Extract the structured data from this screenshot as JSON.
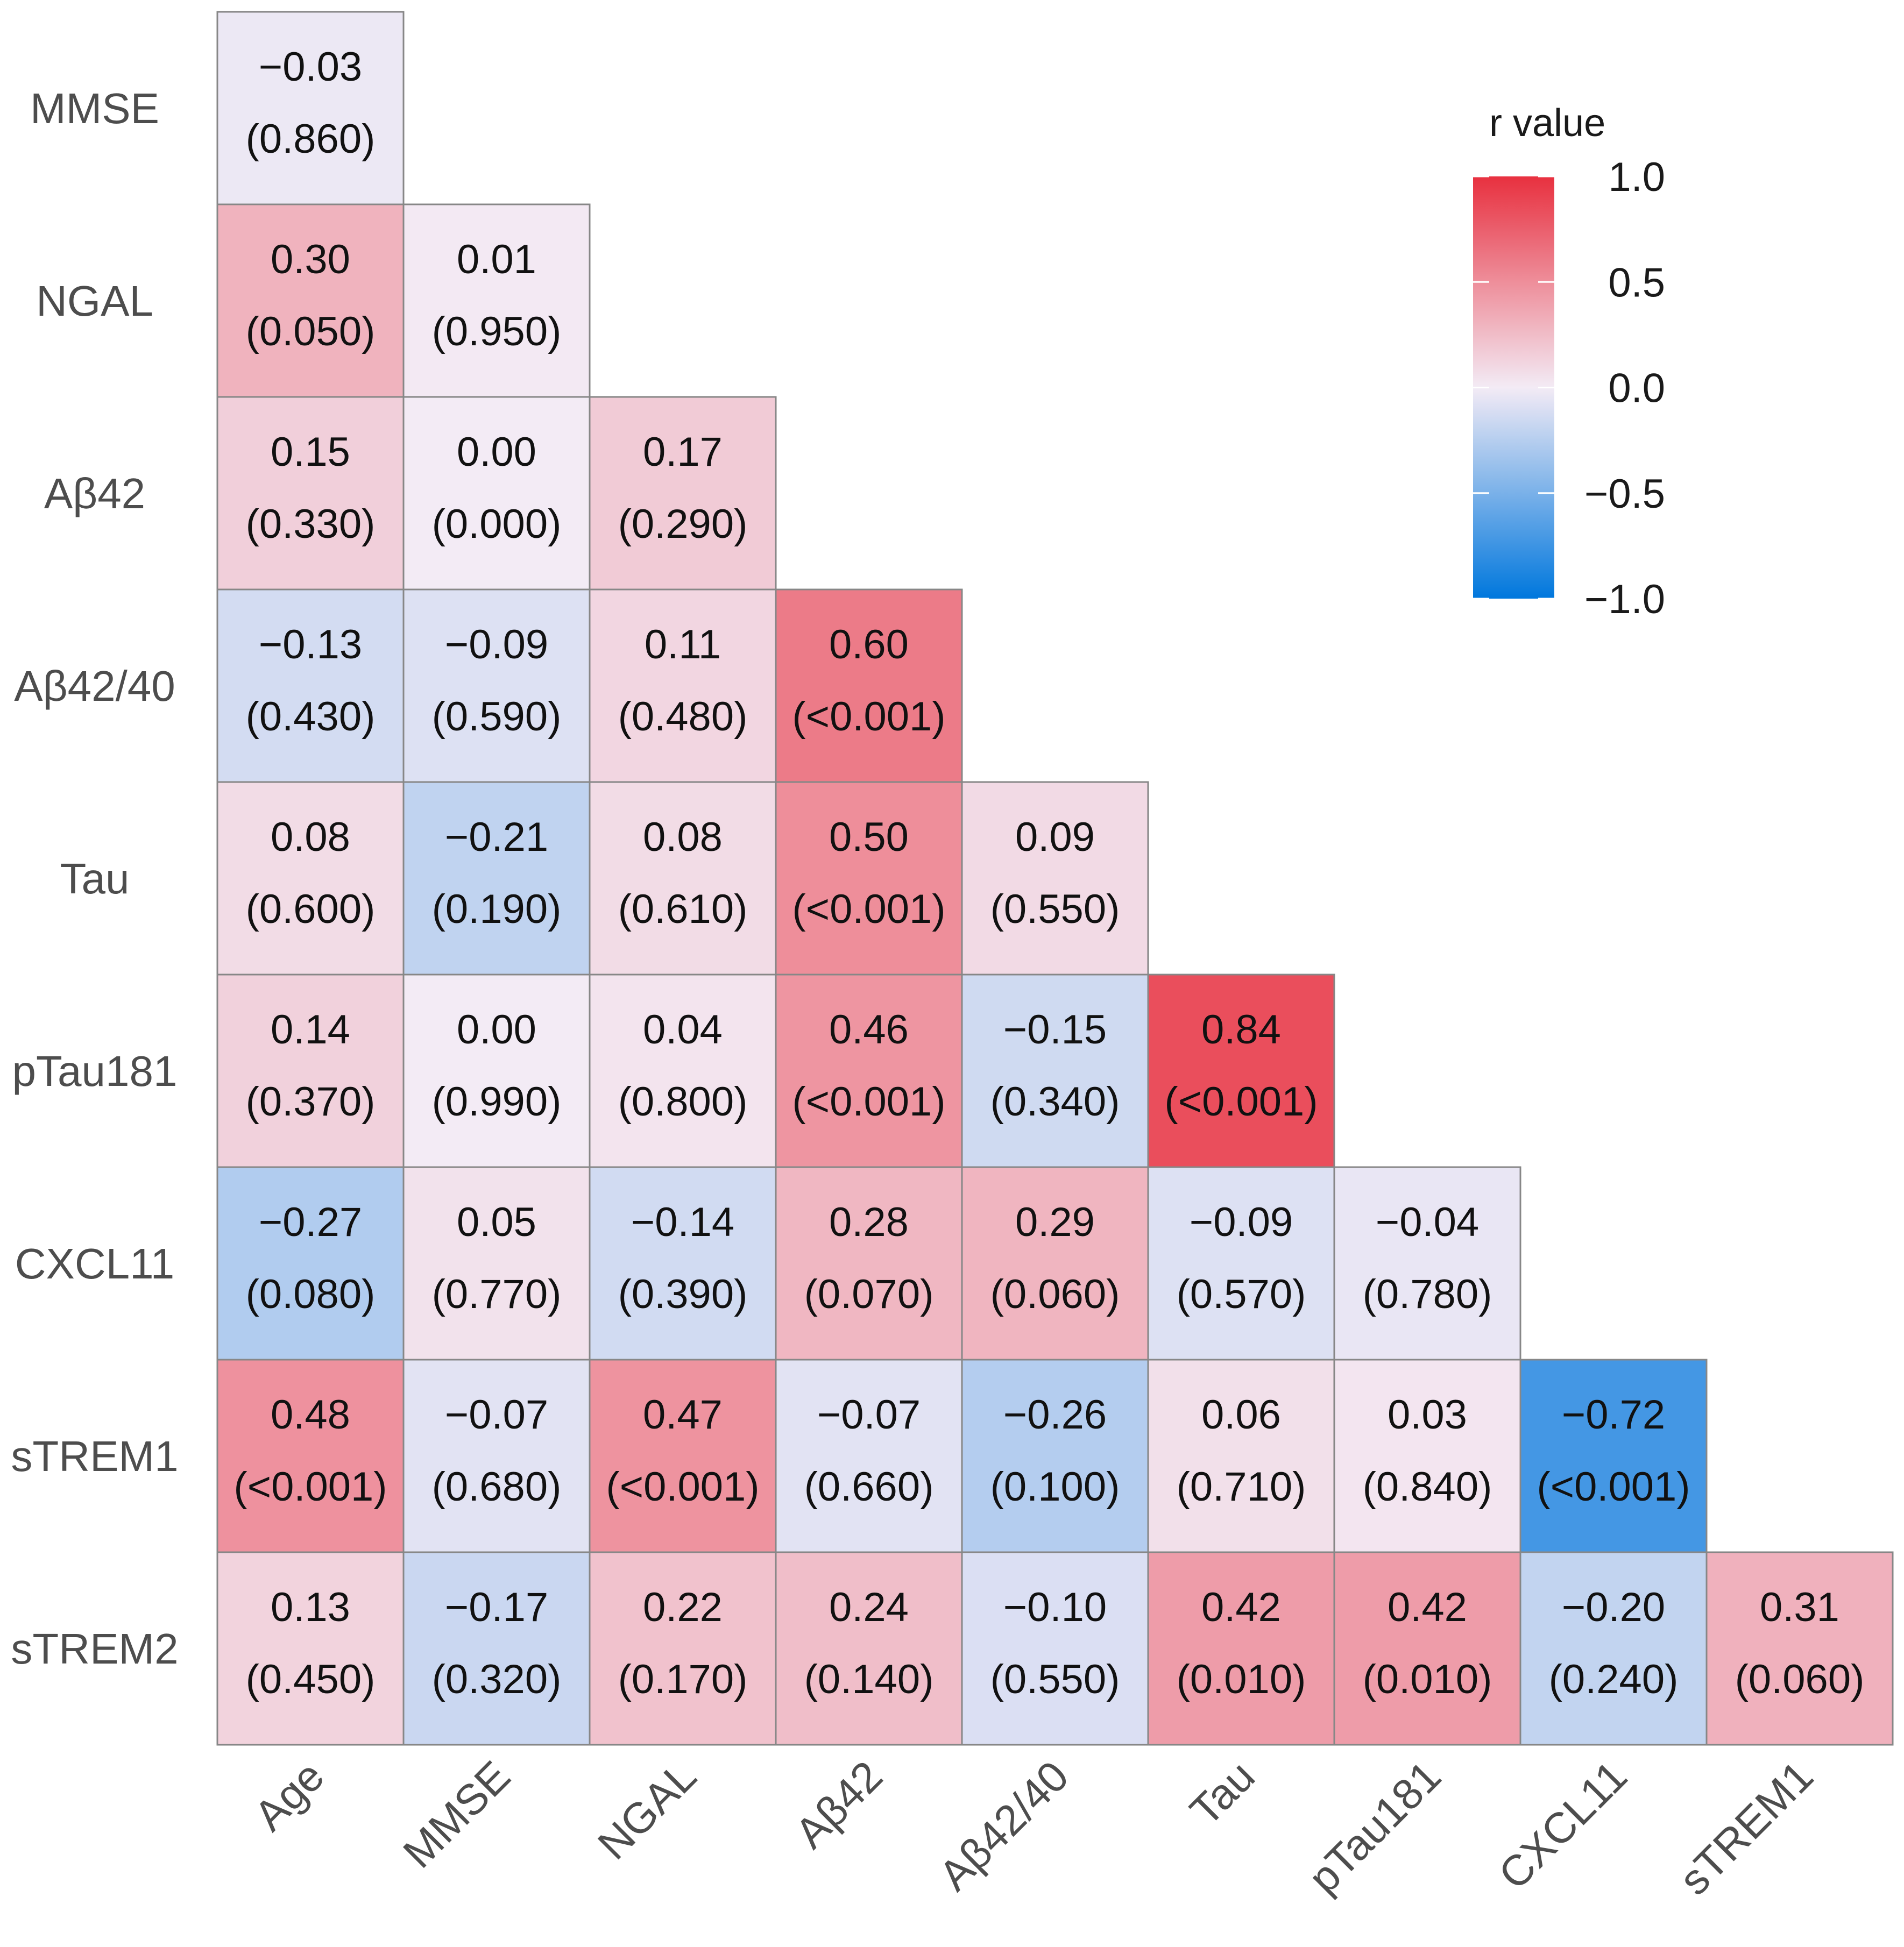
{
  "chart_data": {
    "type": "heatmap",
    "variables": [
      "Age",
      "MMSE",
      "NGAL",
      "Aβ42",
      "Aβ42/40",
      "Tau",
      "pTau181",
      "CXCL11",
      "sTREM1",
      "sTREM2"
    ],
    "row_labels": [
      "MMSE",
      "NGAL",
      "Aβ42",
      "Aβ42/40",
      "Tau",
      "pTau181",
      "CXCL11",
      "sTREM1",
      "sTREM2"
    ],
    "col_labels": [
      "Age",
      "MMSE",
      "NGAL",
      "Aβ42",
      "Aβ42/40",
      "Tau",
      "pTau181",
      "CXCL11",
      "sTREM1"
    ],
    "cells": [
      {
        "row": "MMSE",
        "col": "Age",
        "r": -0.03,
        "r_label": "−0.03",
        "p_label": "(0.860)"
      },
      {
        "row": "NGAL",
        "col": "Age",
        "r": 0.3,
        "r_label": "0.30",
        "p_label": "(0.050)"
      },
      {
        "row": "NGAL",
        "col": "MMSE",
        "r": 0.01,
        "r_label": "0.01",
        "p_label": "(0.950)"
      },
      {
        "row": "Aβ42",
        "col": "Age",
        "r": 0.15,
        "r_label": "0.15",
        "p_label": "(0.330)"
      },
      {
        "row": "Aβ42",
        "col": "MMSE",
        "r": 0.0,
        "r_label": "0.00",
        "p_label": "(0.000)"
      },
      {
        "row": "Aβ42",
        "col": "NGAL",
        "r": 0.17,
        "r_label": "0.17",
        "p_label": "(0.290)"
      },
      {
        "row": "Aβ42/40",
        "col": "Age",
        "r": -0.13,
        "r_label": "−0.13",
        "p_label": "(0.430)"
      },
      {
        "row": "Aβ42/40",
        "col": "MMSE",
        "r": -0.09,
        "r_label": "−0.09",
        "p_label": "(0.590)"
      },
      {
        "row": "Aβ42/40",
        "col": "NGAL",
        "r": 0.11,
        "r_label": "0.11",
        "p_label": "(0.480)"
      },
      {
        "row": "Aβ42/40",
        "col": "Aβ42",
        "r": 0.6,
        "r_label": "0.60",
        "p_label": "(<0.001)"
      },
      {
        "row": "Tau",
        "col": "Age",
        "r": 0.08,
        "r_label": "0.08",
        "p_label": "(0.600)"
      },
      {
        "row": "Tau",
        "col": "MMSE",
        "r": -0.21,
        "r_label": "−0.21",
        "p_label": "(0.190)"
      },
      {
        "row": "Tau",
        "col": "NGAL",
        "r": 0.08,
        "r_label": "0.08",
        "p_label": "(0.610)"
      },
      {
        "row": "Tau",
        "col": "Aβ42",
        "r": 0.5,
        "r_label": "0.50",
        "p_label": "(<0.001)"
      },
      {
        "row": "Tau",
        "col": "Aβ42/40",
        "r": 0.09,
        "r_label": "0.09",
        "p_label": "(0.550)"
      },
      {
        "row": "pTau181",
        "col": "Age",
        "r": 0.14,
        "r_label": "0.14",
        "p_label": "(0.370)"
      },
      {
        "row": "pTau181",
        "col": "MMSE",
        "r": 0.0,
        "r_label": "0.00",
        "p_label": "(0.990)"
      },
      {
        "row": "pTau181",
        "col": "NGAL",
        "r": 0.04,
        "r_label": "0.04",
        "p_label": "(0.800)"
      },
      {
        "row": "pTau181",
        "col": "Aβ42",
        "r": 0.46,
        "r_label": "0.46",
        "p_label": "(<0.001)"
      },
      {
        "row": "pTau181",
        "col": "Aβ42/40",
        "r": -0.15,
        "r_label": "−0.15",
        "p_label": "(0.340)"
      },
      {
        "row": "pTau181",
        "col": "Tau",
        "r": 0.84,
        "r_label": "0.84",
        "p_label": "(<0.001)"
      },
      {
        "row": "CXCL11",
        "col": "Age",
        "r": -0.27,
        "r_label": "−0.27",
        "p_label": "(0.080)"
      },
      {
        "row": "CXCL11",
        "col": "MMSE",
        "r": 0.05,
        "r_label": "0.05",
        "p_label": "(0.770)"
      },
      {
        "row": "CXCL11",
        "col": "NGAL",
        "r": -0.14,
        "r_label": "−0.14",
        "p_label": "(0.390)"
      },
      {
        "row": "CXCL11",
        "col": "Aβ42",
        "r": 0.28,
        "r_label": "0.28",
        "p_label": "(0.070)"
      },
      {
        "row": "CXCL11",
        "col": "Aβ42/40",
        "r": 0.29,
        "r_label": "0.29",
        "p_label": "(0.060)"
      },
      {
        "row": "CXCL11",
        "col": "Tau",
        "r": -0.09,
        "r_label": "−0.09",
        "p_label": "(0.570)"
      },
      {
        "row": "CXCL11",
        "col": "pTau181",
        "r": -0.04,
        "r_label": "−0.04",
        "p_label": "(0.780)"
      },
      {
        "row": "sTREM1",
        "col": "Age",
        "r": 0.48,
        "r_label": "0.48",
        "p_label": "(<0.001)"
      },
      {
        "row": "sTREM1",
        "col": "MMSE",
        "r": -0.07,
        "r_label": "−0.07",
        "p_label": "(0.680)"
      },
      {
        "row": "sTREM1",
        "col": "NGAL",
        "r": 0.47,
        "r_label": "0.47",
        "p_label": "(<0.001)"
      },
      {
        "row": "sTREM1",
        "col": "Aβ42",
        "r": -0.07,
        "r_label": "−0.07",
        "p_label": "(0.660)"
      },
      {
        "row": "sTREM1",
        "col": "Aβ42/40",
        "r": -0.26,
        "r_label": "−0.26",
        "p_label": "(0.100)"
      },
      {
        "row": "sTREM1",
        "col": "Tau",
        "r": 0.06,
        "r_label": "0.06",
        "p_label": "(0.710)"
      },
      {
        "row": "sTREM1",
        "col": "pTau181",
        "r": 0.03,
        "r_label": "0.03",
        "p_label": "(0.840)"
      },
      {
        "row": "sTREM1",
        "col": "CXCL11",
        "r": -0.72,
        "r_label": "−0.72",
        "p_label": "(<0.001)"
      },
      {
        "row": "sTREM2",
        "col": "Age",
        "r": 0.13,
        "r_label": "0.13",
        "p_label": "(0.450)"
      },
      {
        "row": "sTREM2",
        "col": "MMSE",
        "r": -0.17,
        "r_label": "−0.17",
        "p_label": "(0.320)"
      },
      {
        "row": "sTREM2",
        "col": "NGAL",
        "r": 0.22,
        "r_label": "0.22",
        "p_label": "(0.170)"
      },
      {
        "row": "sTREM2",
        "col": "Aβ42",
        "r": 0.24,
        "r_label": "0.24",
        "p_label": "(0.140)"
      },
      {
        "row": "sTREM2",
        "col": "Aβ42/40",
        "r": -0.1,
        "r_label": "−0.10",
        "p_label": "(0.550)"
      },
      {
        "row": "sTREM2",
        "col": "Tau",
        "r": 0.42,
        "r_label": "0.42",
        "p_label": "(0.010)"
      },
      {
        "row": "sTREM2",
        "col": "pTau181",
        "r": 0.42,
        "r_label": "0.42",
        "p_label": "(0.010)"
      },
      {
        "row": "sTREM2",
        "col": "CXCL11",
        "r": -0.2,
        "r_label": "−0.20",
        "p_label": "(0.240)"
      },
      {
        "row": "sTREM2",
        "col": "sTREM1",
        "r": 0.31,
        "r_label": "0.31",
        "p_label": "(0.060)"
      }
    ],
    "legend": {
      "title": "r value",
      "range": [
        -1.0,
        1.0
      ],
      "ticks": [
        1.0,
        0.5,
        0.0,
        -0.5,
        -1.0
      ],
      "tick_labels": [
        "1.0",
        "0.5",
        "0.0",
        "−0.5",
        "−1.0"
      ],
      "placement": "top-right"
    },
    "colors": {
      "high": "#e8303f",
      "mid": "#f3ebf5",
      "low": "#0077dd",
      "cell_border": "#878787"
    }
  }
}
